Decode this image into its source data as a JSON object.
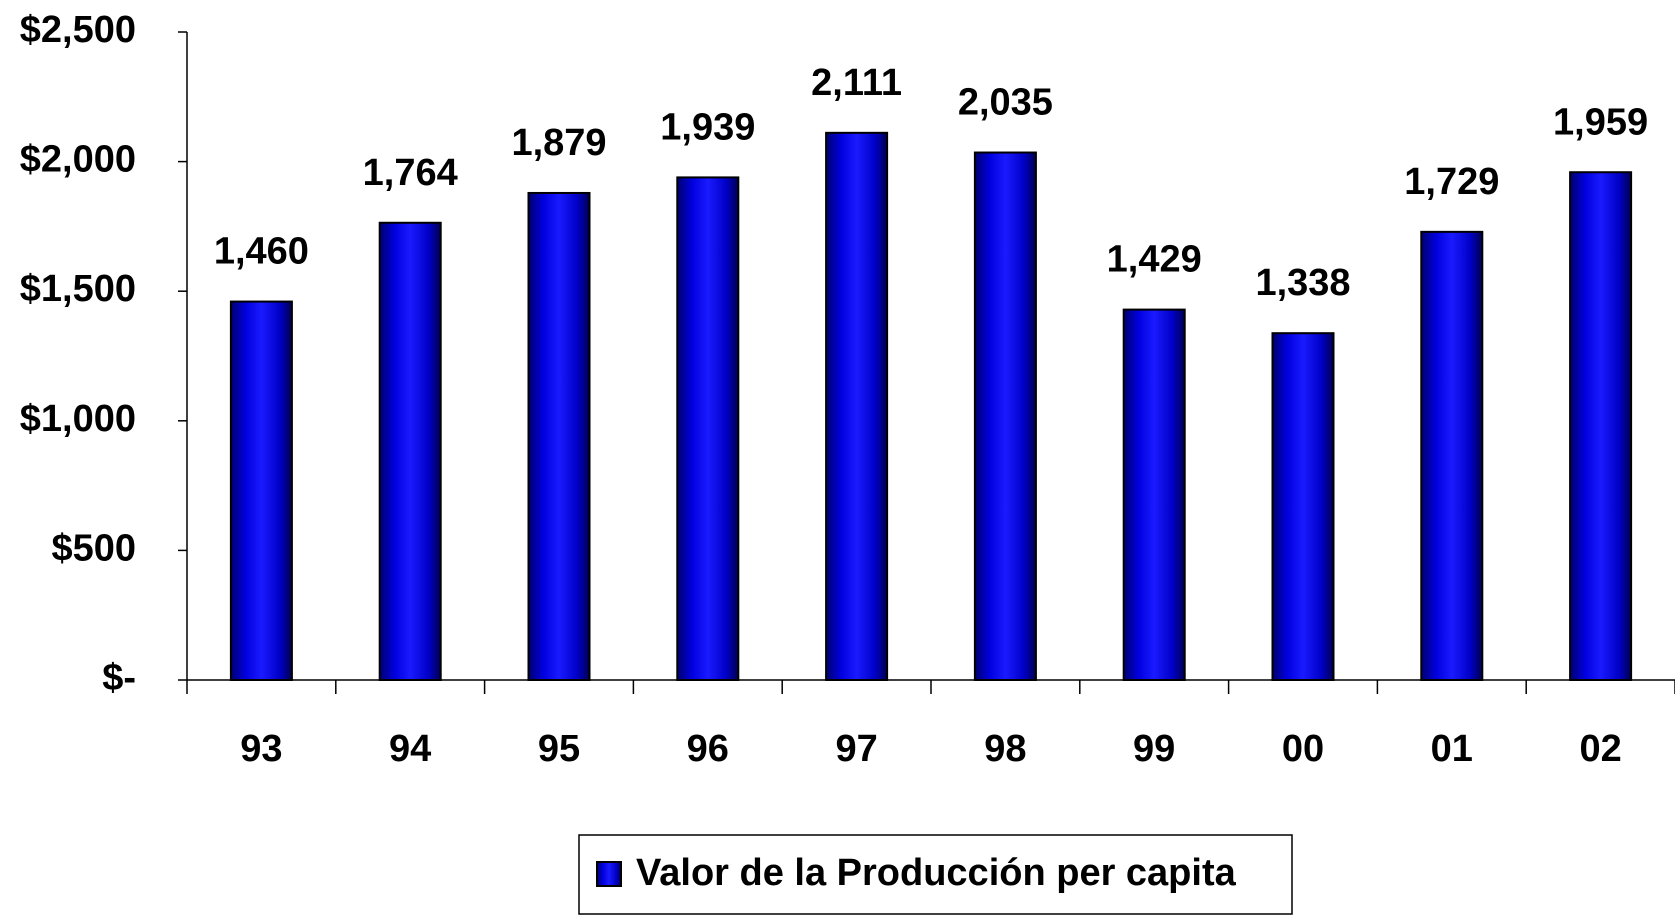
{
  "chart_data": {
    "type": "bar",
    "categories": [
      "93",
      "94",
      "95",
      "96",
      "97",
      "98",
      "99",
      "00",
      "01",
      "02"
    ],
    "series": [
      {
        "name": "Valor de la Producción per capita",
        "color": "#0000ff",
        "values": [
          1460,
          1764,
          1879,
          1939,
          2111,
          2035,
          1429,
          1338,
          1729,
          1959
        ],
        "value_labels": [
          "1,460",
          "1,764",
          "1,879",
          "1,939",
          "2,111",
          "2,035",
          "1,429",
          "1,338",
          "1,729",
          "1,959"
        ]
      }
    ],
    "ylim": [
      0,
      2500
    ],
    "yticks": [
      {
        "value": 0,
        "label": "$-"
      },
      {
        "value": 500,
        "label": "$500"
      },
      {
        "value": 1000,
        "label": "$1,000"
      },
      {
        "value": 1500,
        "label": "$1,500"
      },
      {
        "value": 2000,
        "label": "$2,000"
      },
      {
        "value": 2500,
        "label": "$2,500"
      }
    ],
    "grid": false,
    "legend": "bottom"
  }
}
